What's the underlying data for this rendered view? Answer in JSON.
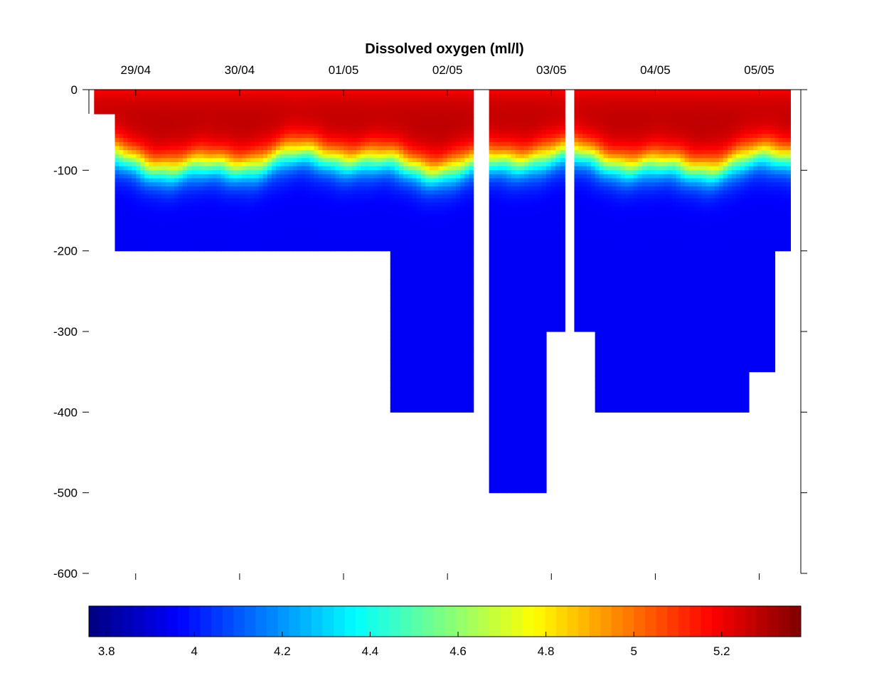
{
  "chart_data": {
    "type": "heatmap",
    "title": "Dissolved oxygen (ml/l)",
    "xlabel": "",
    "ylabel": "",
    "x_tick_labels": [
      "29/04",
      "30/04",
      "01/05",
      "02/05",
      "03/05",
      "04/05",
      "05/05"
    ],
    "x_tick_days": [
      0,
      1,
      2,
      3,
      4,
      5,
      6
    ],
    "xlim_days": [
      -0.45,
      6.4
    ],
    "y_ticks": [
      0,
      -100,
      -200,
      -300,
      -400,
      -500,
      -600
    ],
    "ylim": [
      -600,
      0
    ],
    "colorbar": {
      "colormap": "jet",
      "range": [
        3.76,
        5.38
      ],
      "ticks": [
        3.8,
        4,
        4.2,
        4.4,
        4.6,
        4.8,
        5,
        5.2
      ],
      "tick_labels": [
        "3.8",
        "4",
        "4.2",
        "4.4",
        "4.6",
        "4.8",
        "5",
        "5.2"
      ]
    },
    "sections": [
      {
        "x_start": -0.4,
        "x_end": -0.2,
        "max_depth": 30
      },
      {
        "x_start": -0.2,
        "x_end": 2.45,
        "max_depth": 200
      },
      {
        "x_start": 2.45,
        "x_end": 3.25,
        "max_depth": 400
      },
      {
        "x_start": 3.4,
        "x_end": 3.95,
        "max_depth": 500
      },
      {
        "x_start": 3.95,
        "x_end": 4.13,
        "max_depth": 300
      },
      {
        "x_start": 4.22,
        "x_end": 4.42,
        "max_depth": 300
      },
      {
        "x_start": 4.42,
        "x_end": 5.9,
        "max_depth": 400
      },
      {
        "x_start": 5.9,
        "x_end": 6.15,
        "max_depth": 350
      },
      {
        "x_start": 6.15,
        "x_end": 6.3,
        "max_depth": 200
      }
    ],
    "profile": {
      "surface_value": 5.2,
      "mixed_layer_value": 5.3,
      "thermocline_depth_approx": 90,
      "deep_value": 3.95
    }
  }
}
